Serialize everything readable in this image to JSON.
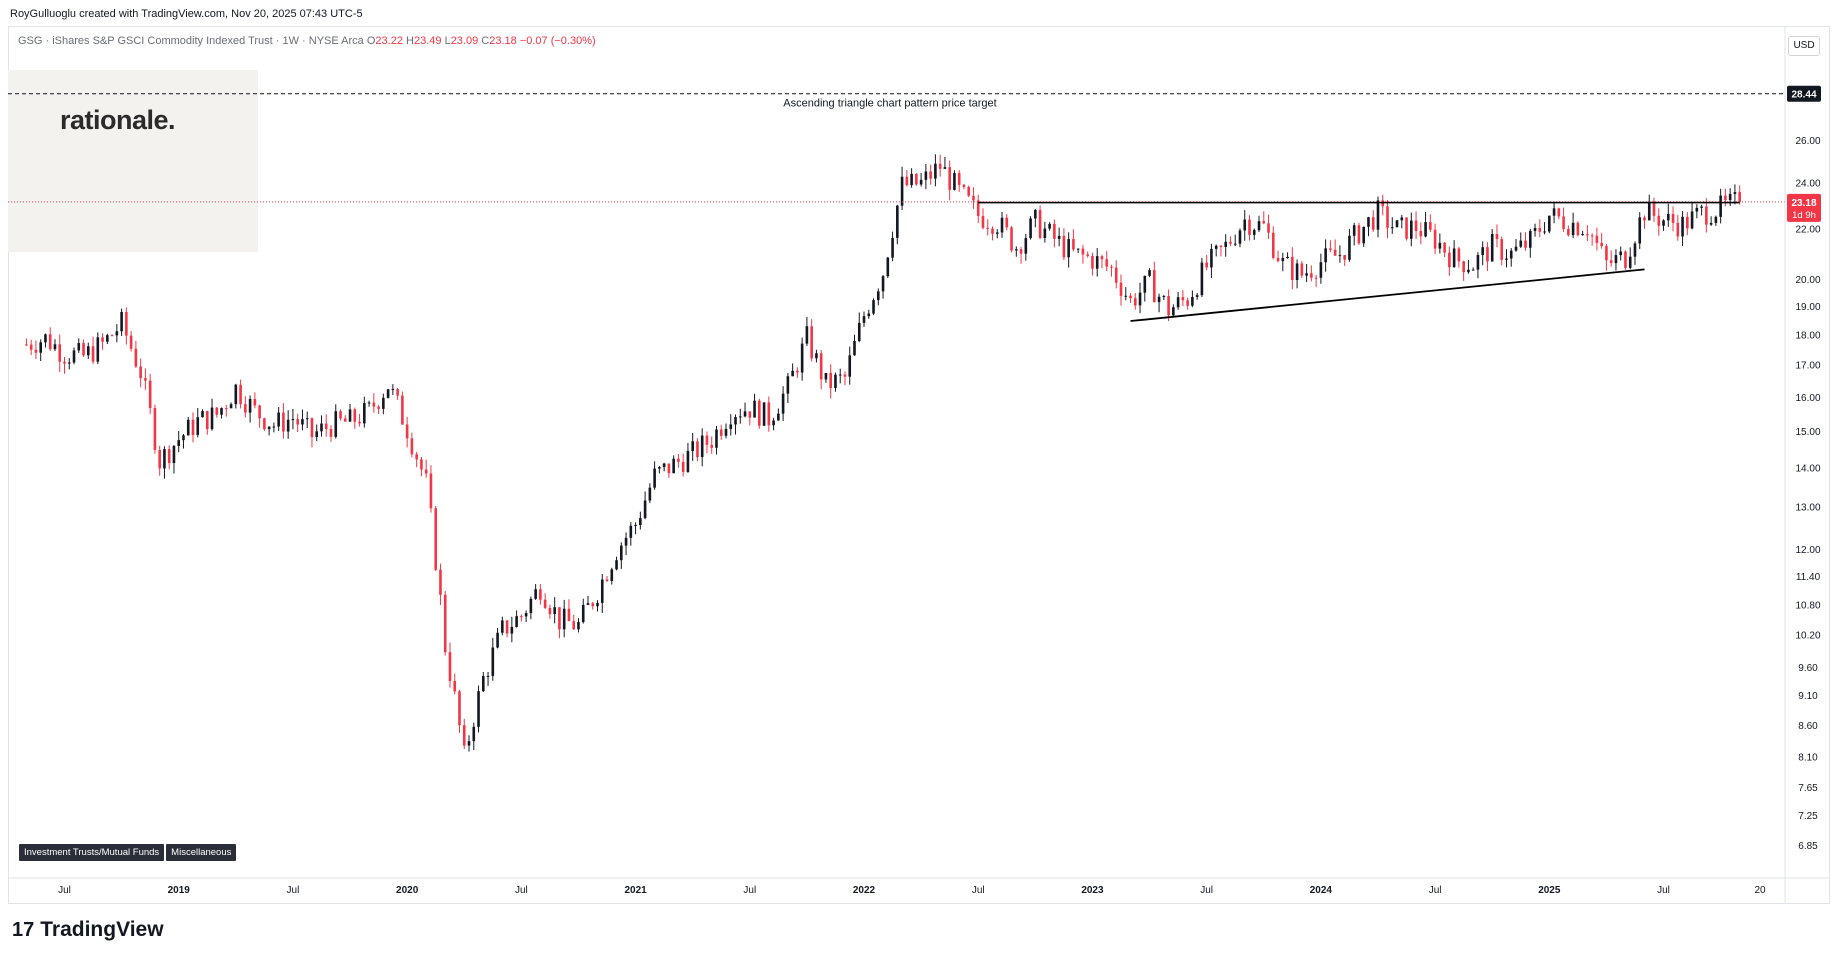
{
  "header": {
    "attribution": "RoyGulluoglu created with TradingView.com, Nov 20, 2025 07:43 UTC-5"
  },
  "legend": {
    "symbol_line": "GSG · iShares S&P GSCI Commodity Indexed Trust · 1W · NYSE Arca",
    "open_label": "O",
    "open_value": "23.22",
    "high_label": "H",
    "high_value": "23.49",
    "low_label": "L",
    "low_value": "23.09",
    "close_label": "C",
    "close_value": "23.18",
    "change": "−0.07 (−0.30%)"
  },
  "currency_button": "USD",
  "watermark": "rationale.",
  "tags": [
    "Investment Trusts/Mutual Funds",
    "Miscellaneous"
  ],
  "footer": {
    "logo_mark": "17",
    "brand": "TradingView"
  },
  "colors": {
    "up": "#131722",
    "down": "#f23645",
    "price_label_bg": "#f23645",
    "target_label_bg": "#131722"
  },
  "chart_data": {
    "type": "candlestick",
    "symbol": "GSG",
    "interval": "1W",
    "y_scale": "log",
    "ylim": [
      6.45,
      30.2
    ],
    "y_ticks": [
      "26.00",
      "24.00",
      "22.00",
      "20.00",
      "19.00",
      "18.00",
      "17.00",
      "16.00",
      "15.00",
      "14.00",
      "13.00",
      "12.00",
      "11.40",
      "10.80",
      "10.20",
      "9.60",
      "9.10",
      "8.60",
      "8.10",
      "7.65",
      "7.25",
      "6.85"
    ],
    "x_ticks": [
      "Jul",
      "2019",
      "Jul",
      "2020",
      "Jul",
      "2021",
      "Jul",
      "2022",
      "Jul",
      "2023",
      "Jul",
      "2024",
      "Jul",
      "2025",
      "Jul",
      "20"
    ],
    "last_price": {
      "label": "23.18",
      "countdown": "1d 9h"
    },
    "target_price": {
      "label": "28.44",
      "annotation": "Ascending triangle chart pattern price target"
    },
    "resistance_level": 23.15,
    "support_trendline": {
      "from": [
        "2023-03",
        18.5
      ],
      "to": [
        "2025-06",
        20.4
      ]
    },
    "close_series": [
      {
        "date": "2018-05",
        "close": 17.7
      },
      {
        "date": "2018-06",
        "close": 17.9
      },
      {
        "date": "2018-07",
        "close": 17.4
      },
      {
        "date": "2018-08",
        "close": 17.3
      },
      {
        "date": "2018-09",
        "close": 17.7
      },
      {
        "date": "2018-10",
        "close": 18.4
      },
      {
        "date": "2018-11",
        "close": 16.8
      },
      {
        "date": "2018-12",
        "close": 14.2
      },
      {
        "date": "2019-01",
        "close": 14.8
      },
      {
        "date": "2019-02",
        "close": 15.3
      },
      {
        "date": "2019-03",
        "close": 15.5
      },
      {
        "date": "2019-04",
        "close": 16.3
      },
      {
        "date": "2019-05",
        "close": 15.6
      },
      {
        "date": "2019-06",
        "close": 15.2
      },
      {
        "date": "2019-07",
        "close": 15.4
      },
      {
        "date": "2019-08",
        "close": 14.9
      },
      {
        "date": "2019-09",
        "close": 15.2
      },
      {
        "date": "2019-10",
        "close": 15.3
      },
      {
        "date": "2019-11",
        "close": 15.6
      },
      {
        "date": "2019-12",
        "close": 16.4
      },
      {
        "date": "2020-01",
        "close": 15.1
      },
      {
        "date": "2020-02",
        "close": 13.6
      },
      {
        "date": "2020-03",
        "close": 10.0
      },
      {
        "date": "2020-04",
        "close": 8.1
      },
      {
        "date": "2020-05",
        "close": 9.4
      },
      {
        "date": "2020-06",
        "close": 10.3
      },
      {
        "date": "2020-07",
        "close": 10.6
      },
      {
        "date": "2020-08",
        "close": 11.2
      },
      {
        "date": "2020-09",
        "close": 10.5
      },
      {
        "date": "2020-10",
        "close": 10.4
      },
      {
        "date": "2020-11",
        "close": 11.1
      },
      {
        "date": "2020-12",
        "close": 12.0
      },
      {
        "date": "2021-01",
        "close": 12.6
      },
      {
        "date": "2021-02",
        "close": 13.8
      },
      {
        "date": "2021-03",
        "close": 14.1
      },
      {
        "date": "2021-04",
        "close": 14.4
      },
      {
        "date": "2021-05",
        "close": 14.8
      },
      {
        "date": "2021-06",
        "close": 15.6
      },
      {
        "date": "2021-07",
        "close": 15.7
      },
      {
        "date": "2021-08",
        "close": 15.4
      },
      {
        "date": "2021-09",
        "close": 16.3
      },
      {
        "date": "2021-10",
        "close": 17.9
      },
      {
        "date": "2021-11",
        "close": 16.4
      },
      {
        "date": "2021-12",
        "close": 16.6
      },
      {
        "date": "2022-01",
        "close": 18.7
      },
      {
        "date": "2022-02",
        "close": 20.3
      },
      {
        "date": "2022-03",
        "close": 23.9
      },
      {
        "date": "2022-04",
        "close": 24.0
      },
      {
        "date": "2022-05",
        "close": 24.8
      },
      {
        "date": "2022-06",
        "close": 23.6
      },
      {
        "date": "2022-07",
        "close": 22.6
      },
      {
        "date": "2022-08",
        "close": 22.3
      },
      {
        "date": "2022-09",
        "close": 21.3
      },
      {
        "date": "2022-10",
        "close": 22.3
      },
      {
        "date": "2022-11",
        "close": 21.6
      },
      {
        "date": "2022-12",
        "close": 21.0
      },
      {
        "date": "2023-01",
        "close": 20.8
      },
      {
        "date": "2023-02",
        "close": 20.4
      },
      {
        "date": "2023-03",
        "close": 19.2
      },
      {
        "date": "2023-04",
        "close": 19.9
      },
      {
        "date": "2023-05",
        "close": 18.9
      },
      {
        "date": "2023-06",
        "close": 19.3
      },
      {
        "date": "2023-07",
        "close": 20.5
      },
      {
        "date": "2023-08",
        "close": 21.3
      },
      {
        "date": "2023-09",
        "close": 22.4
      },
      {
        "date": "2023-10",
        "close": 22.1
      },
      {
        "date": "2023-11",
        "close": 20.6
      },
      {
        "date": "2023-12",
        "close": 20.2
      },
      {
        "date": "2024-01",
        "close": 20.7
      },
      {
        "date": "2024-02",
        "close": 21.0
      },
      {
        "date": "2024-03",
        "close": 21.9
      },
      {
        "date": "2024-04",
        "close": 22.7
      },
      {
        "date": "2024-05",
        "close": 22.0
      },
      {
        "date": "2024-06",
        "close": 22.1
      },
      {
        "date": "2024-07",
        "close": 21.6
      },
      {
        "date": "2024-08",
        "close": 20.8
      },
      {
        "date": "2024-09",
        "close": 20.6
      },
      {
        "date": "2024-10",
        "close": 21.3
      },
      {
        "date": "2024-11",
        "close": 21.0
      },
      {
        "date": "2024-12",
        "close": 21.5
      },
      {
        "date": "2025-01",
        "close": 22.6
      },
      {
        "date": "2025-02",
        "close": 22.3
      },
      {
        "date": "2025-03",
        "close": 22.1
      },
      {
        "date": "2025-04",
        "close": 20.6
      },
      {
        "date": "2025-05",
        "close": 20.9
      },
      {
        "date": "2025-06",
        "close": 22.8
      },
      {
        "date": "2025-07",
        "close": 22.4
      },
      {
        "date": "2025-08",
        "close": 22.2
      },
      {
        "date": "2025-09",
        "close": 22.7
      },
      {
        "date": "2025-10",
        "close": 22.9
      },
      {
        "date": "2025-11",
        "close": 23.18
      }
    ]
  }
}
